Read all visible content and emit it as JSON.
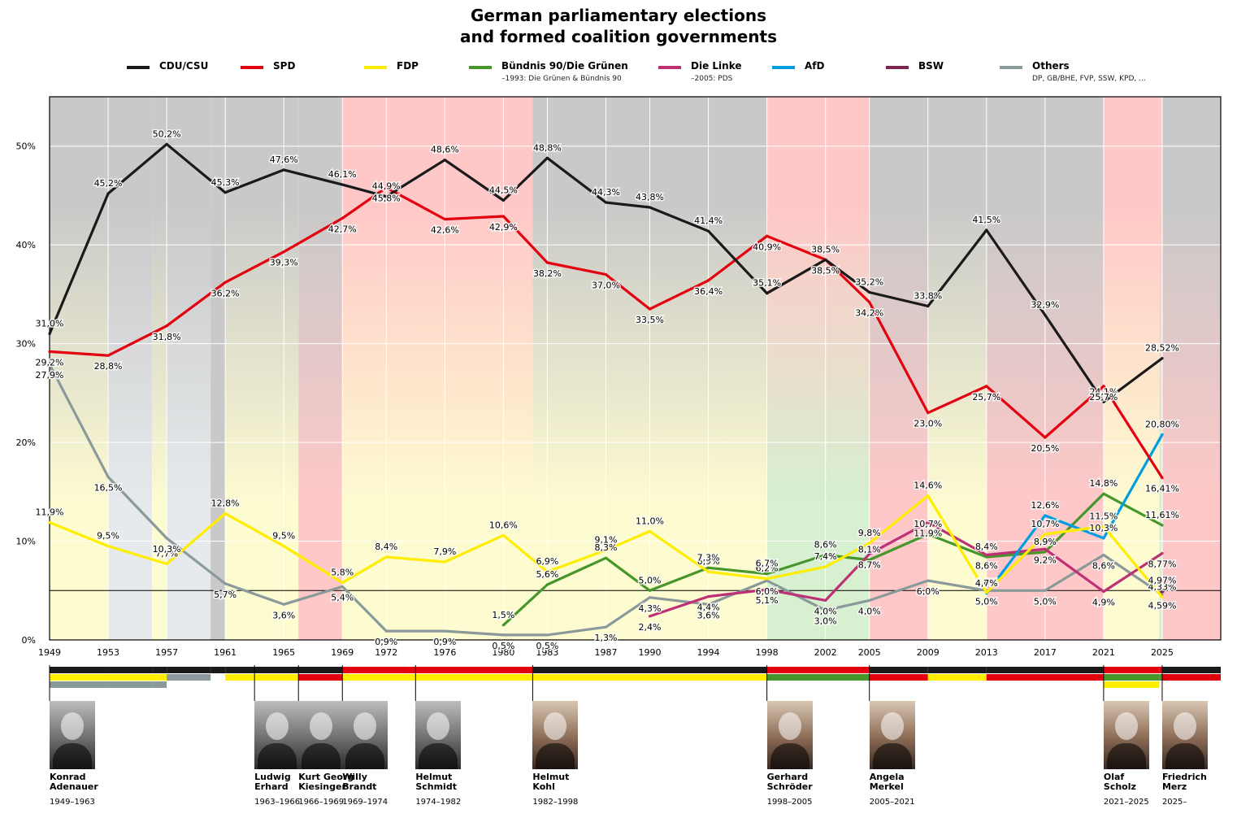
{
  "title_lines": [
    "German parliamentary elections",
    "and formed coalition governments"
  ],
  "colors": {
    "CDU/CSU": "#1a1a1a",
    "SPD": "#e3000f",
    "FDP": "#ffed00",
    "Grune": "#46962b",
    "Linke": "#be3075",
    "AfD": "#009ee0",
    "BSW": "#7d254f",
    "Others": "#8a9a9a"
  },
  "legend": [
    {
      "key": "CDU/CSU",
      "label": "CDU/CSU",
      "note": ""
    },
    {
      "key": "SPD",
      "label": "SPD",
      "note": ""
    },
    {
      "key": "FDP",
      "label": "FDP",
      "note": ""
    },
    {
      "key": "Grune",
      "label": "Bündnis 90/Die Grünen",
      "note": "–1993: Die Grünen & Bündnis 90"
    },
    {
      "key": "Linke",
      "label": "Die Linke",
      "note": "–2005: PDS"
    },
    {
      "key": "AfD",
      "label": "AfD",
      "note": ""
    },
    {
      "key": "BSW",
      "label": "BSW",
      "note": ""
    },
    {
      "key": "Others",
      "label": "Others",
      "note": "DP, GB/BHE, FVP, SSW, KPD, ..."
    }
  ],
  "chart_data": {
    "type": "line",
    "ylim": [
      0,
      55
    ],
    "xlim": [
      1949,
      2029
    ],
    "x_ticks": [
      "1949",
      "1953",
      "1957",
      "1961",
      "1965",
      "1969",
      "1972",
      "1976",
      "1980",
      "1983",
      "1987",
      "1990",
      "1994",
      "1998",
      "2002",
      "2005",
      "2009",
      "2013",
      "2017",
      "2021",
      "2025"
    ],
    "y_ticks": [
      {
        "value": 0,
        "label": "0%"
      },
      {
        "value": 10,
        "label": "10%"
      },
      {
        "value": 20,
        "label": "20%"
      },
      {
        "value": 30,
        "label": "30%"
      },
      {
        "value": 40,
        "label": "40%"
      },
      {
        "value": 50,
        "label": "50%"
      }
    ],
    "threshold": 5,
    "series": [
      {
        "name": "CDU/CSU",
        "key": "CDU/CSU",
        "x": [
          1949,
          1953,
          1957,
          1961,
          1965,
          1969,
          1972,
          1976,
          1980,
          1983,
          1987,
          1990,
          1994,
          1998,
          2002,
          2005,
          2009,
          2013,
          2017,
          2021,
          2025
        ],
        "values": [
          31.0,
          45.2,
          50.2,
          45.3,
          47.6,
          46.1,
          44.9,
          48.6,
          44.5,
          48.8,
          44.3,
          43.8,
          41.4,
          35.1,
          38.5,
          35.2,
          33.8,
          41.5,
          32.9,
          24.1,
          28.52
        ],
        "labels": [
          "31,0%",
          "45,2%",
          "50,2%",
          "45,3%",
          "47,6%",
          "46,1%",
          "44,9%",
          "48,6%",
          "44,5%",
          "48,8%",
          "44,3%",
          "43,8%",
          "41,4%",
          "35,1%",
          "38,5%",
          "35,2%",
          "33,8%",
          "41,5%",
          "32,9%",
          "24,1%",
          "28,52%"
        ]
      },
      {
        "name": "SPD",
        "key": "SPD",
        "x": [
          1949,
          1953,
          1957,
          1961,
          1965,
          1969,
          1972,
          1976,
          1980,
          1983,
          1987,
          1990,
          1994,
          1998,
          2002,
          2005,
          2009,
          2013,
          2017,
          2021,
          2025
        ],
        "values": [
          29.2,
          28.8,
          31.8,
          36.2,
          39.3,
          42.7,
          45.8,
          42.6,
          42.9,
          38.2,
          37.0,
          33.5,
          36.4,
          40.9,
          38.5,
          34.2,
          23.0,
          25.7,
          20.5,
          25.7,
          16.41
        ],
        "labels": [
          "29,2%",
          "28,8%",
          "31,8%",
          "36,2%",
          "39,3%",
          "42,7%",
          "45,8%",
          "42,6%",
          "42,9%",
          "38,2%",
          "37,0%",
          "33,5%",
          "36,4%",
          "40,9%",
          "38,5%",
          "34,2%",
          "23,0%",
          "25,7%",
          "20,5%",
          "25,7%",
          "16,41%"
        ]
      },
      {
        "name": "FDP",
        "key": "FDP",
        "x": [
          1949,
          1953,
          1957,
          1961,
          1965,
          1969,
          1972,
          1976,
          1980,
          1983,
          1987,
          1990,
          1994,
          1998,
          2002,
          2005,
          2009,
          2013,
          2017,
          2021,
          2025
        ],
        "values": [
          11.9,
          9.5,
          7.7,
          12.8,
          9.5,
          5.8,
          8.4,
          7.9,
          10.6,
          6.9,
          9.1,
          11.0,
          6.9,
          6.2,
          7.4,
          9.8,
          14.6,
          4.8,
          10.7,
          11.5,
          4.33
        ],
        "labels": [
          "11,9%",
          "9,5%",
          "7,7%",
          "12,8%",
          "9,5%",
          "5,8%",
          "8,4%",
          "7,9%",
          "10,6%",
          "6,9%",
          "9,1%",
          "11,0%",
          "6,9%",
          "6,2%",
          "7,4%",
          "9,8%",
          "14,6%",
          "4,8%",
          "10,7%",
          "11,5%",
          "4,33%"
        ]
      },
      {
        "name": "Bündnis 90/Die Grünen",
        "key": "Grune",
        "x": [
          1980,
          1983,
          1987,
          1990,
          1994,
          1998,
          2002,
          2005,
          2009,
          2013,
          2017,
          2021,
          2025
        ],
        "values": [
          1.5,
          5.6,
          8.3,
          5.0,
          7.3,
          6.7,
          8.6,
          8.1,
          10.7,
          8.4,
          8.9,
          14.8,
          11.61
        ],
        "labels": [
          "1,5%",
          "5,6%",
          "8,3%",
          "5,0%",
          "7,3%",
          "6,7%",
          "8,6%",
          "8,1%",
          "10,7%",
          "8,4%",
          "8,9%",
          "14,8%",
          "11,61%"
        ]
      },
      {
        "name": "Die Linke",
        "key": "Linke",
        "x": [
          1990,
          1994,
          1998,
          2002,
          2005,
          2009,
          2013,
          2017,
          2021,
          2025
        ],
        "values": [
          2.4,
          4.4,
          5.1,
          4.0,
          8.7,
          11.9,
          8.6,
          9.2,
          4.9,
          8.77
        ],
        "labels": [
          "2,4%",
          "4,4%",
          "5,1%",
          "4,0%",
          "8,7%",
          "11,9%",
          "8,6%",
          "9,2%",
          "4,9%",
          "8,77%"
        ]
      },
      {
        "name": "AfD",
        "key": "AfD",
        "x": [
          2013,
          2017,
          2021,
          2025
        ],
        "values": [
          4.7,
          12.6,
          10.3,
          20.8
        ],
        "labels": [
          "4,7%",
          "12,6%",
          "10,3%",
          "20,80%"
        ]
      },
      {
        "name": "BSW",
        "key": "BSW",
        "x": [
          2025
        ],
        "values": [
          4.97
        ],
        "labels": [
          "4,97%"
        ]
      },
      {
        "name": "Others",
        "key": "Others",
        "x": [
          1949,
          1953,
          1957,
          1961,
          1965,
          1969,
          1972,
          1976,
          1980,
          1983,
          1987,
          1990,
          1994,
          1998,
          2002,
          2005,
          2009,
          2013,
          2017,
          2021,
          2025
        ],
        "values": [
          27.9,
          16.5,
          10.3,
          5.7,
          3.6,
          5.4,
          0.9,
          0.9,
          0.5,
          0.5,
          1.3,
          4.3,
          3.6,
          6.0,
          3.0,
          4.0,
          6.0,
          5.0,
          5.0,
          8.6,
          4.59
        ],
        "labels": [
          "27,9%",
          "16,5%",
          "10,3%",
          "5,7%",
          "3,6%",
          "5,4%",
          "0,9%",
          "0,9%",
          "0,5%",
          "0,5%",
          "1,3%",
          "4,3%",
          "3,6%",
          "6,0%",
          "3,0%",
          "4,0%",
          "6,0%",
          "5,0%",
          "5,0%",
          "8,6%",
          "4,59%"
        ]
      }
    ],
    "government_periods": [
      {
        "from": 1949.0,
        "to": 1953.0,
        "parties": [
          "CDU/CSU",
          "FDP",
          "Others"
        ],
        "top": "#c9c9c9",
        "bottom": "#fdfbd0"
      },
      {
        "from": 1953.0,
        "to": 1956.0,
        "parties": [
          "CDU/CSU",
          "FDP",
          "Others"
        ],
        "top": "#c9c9c9",
        "bottom": "#e6eaec"
      },
      {
        "from": 1956.0,
        "to": 1957.0,
        "parties": [
          "CDU/CSU",
          "FDP",
          "Others"
        ],
        "top": "#c9c9c9",
        "bottom": "#fdfbd0"
      },
      {
        "from": 1957.0,
        "to": 1960.0,
        "parties": [
          "CDU/CSU",
          "Others"
        ],
        "top": "#c9c9c9",
        "bottom": "#e6eaec"
      },
      {
        "from": 1960.0,
        "to": 1961.0,
        "parties": [
          "CDU/CSU"
        ],
        "top": "#c9c9c9",
        "bottom": "#c9c9c9"
      },
      {
        "from": 1961.0,
        "to": 1966.0,
        "parties": [
          "CDU/CSU",
          "FDP"
        ],
        "top": "#c9c9c9",
        "bottom": "#fdfbd0"
      },
      {
        "from": 1966.0,
        "to": 1969.0,
        "parties": [
          "CDU/CSU",
          "SPD"
        ],
        "top": "#c9c9c9",
        "bottom": "#ffc8c8"
      },
      {
        "from": 1969.0,
        "to": 1982.0,
        "parties": [
          "SPD",
          "FDP"
        ],
        "top": "#ffc8c8",
        "bottom": "#fdfbd0"
      },
      {
        "from": 1982.0,
        "to": 1998.0,
        "parties": [
          "CDU/CSU",
          "FDP"
        ],
        "top": "#c9c9c9",
        "bottom": "#fdfbd0"
      },
      {
        "from": 1998.0,
        "to": 2005.0,
        "parties": [
          "SPD",
          "Grune"
        ],
        "top": "#ffc8c8",
        "bottom": "#d6f0d0"
      },
      {
        "from": 2005.0,
        "to": 2009.0,
        "parties": [
          "CDU/CSU",
          "SPD"
        ],
        "top": "#c9c9c9",
        "bottom": "#ffc8c8"
      },
      {
        "from": 2009.0,
        "to": 2013.0,
        "parties": [
          "CDU/CSU",
          "FDP"
        ],
        "top": "#c9c9c9",
        "bottom": "#fdfbd0"
      },
      {
        "from": 2013.0,
        "to": 2021.0,
        "parties": [
          "CDU/CSU",
          "SPD"
        ],
        "top": "#c9c9c9",
        "bottom": "#ffc8c8"
      },
      {
        "from": 2021.0,
        "to": 2024.8,
        "parties": [
          "SPD",
          "Grune",
          "FDP"
        ],
        "top": "#ffc8c8",
        "bottom": "#fdfbd0"
      },
      {
        "from": 2024.8,
        "to": 2025.0,
        "parties": [
          "SPD",
          "Grune"
        ],
        "top": "#ffc8c8",
        "bottom": "#d6f0d0"
      },
      {
        "from": 2025.0,
        "to": 2029.0,
        "parties": [
          "CDU/CSU",
          "SPD"
        ],
        "top": "#c9c9c9",
        "bottom": "#ffc8c8"
      }
    ]
  },
  "chancellors": [
    {
      "name": "Konrad\nAdenauer",
      "term": "1949–1963",
      "start": 1949,
      "photo": "bw"
    },
    {
      "name": "Ludwig\nErhard",
      "term": "1963–1966",
      "start": 1963,
      "photo": "bw"
    },
    {
      "name": "Kurt Georg\nKiesinger",
      "term": "1966–1969",
      "start": 1966,
      "photo": "bw"
    },
    {
      "name": "Willy\nBrandt",
      "term": "1969–1974",
      "start": 1969,
      "photo": "bw"
    },
    {
      "name": "Helmut\nSchmidt",
      "term": "1974–1982",
      "start": 1974,
      "photo": "bw"
    },
    {
      "name": "Helmut\nKohl",
      "term": "1982–1998",
      "start": 1982,
      "photo": "color"
    },
    {
      "name": "Gerhard\nSchröder",
      "term": "1998–2005",
      "start": 1998,
      "photo": "color"
    },
    {
      "name": "Angela\nMerkel",
      "term": "2005–2021",
      "start": 2005,
      "photo": "color"
    },
    {
      "name": "Olaf\nScholz",
      "term": "2021–2025",
      "start": 2021,
      "photo": "color"
    },
    {
      "name": "Friedrich\nMerz",
      "term": "2025–",
      "start": 2025,
      "photo": "color"
    }
  ]
}
